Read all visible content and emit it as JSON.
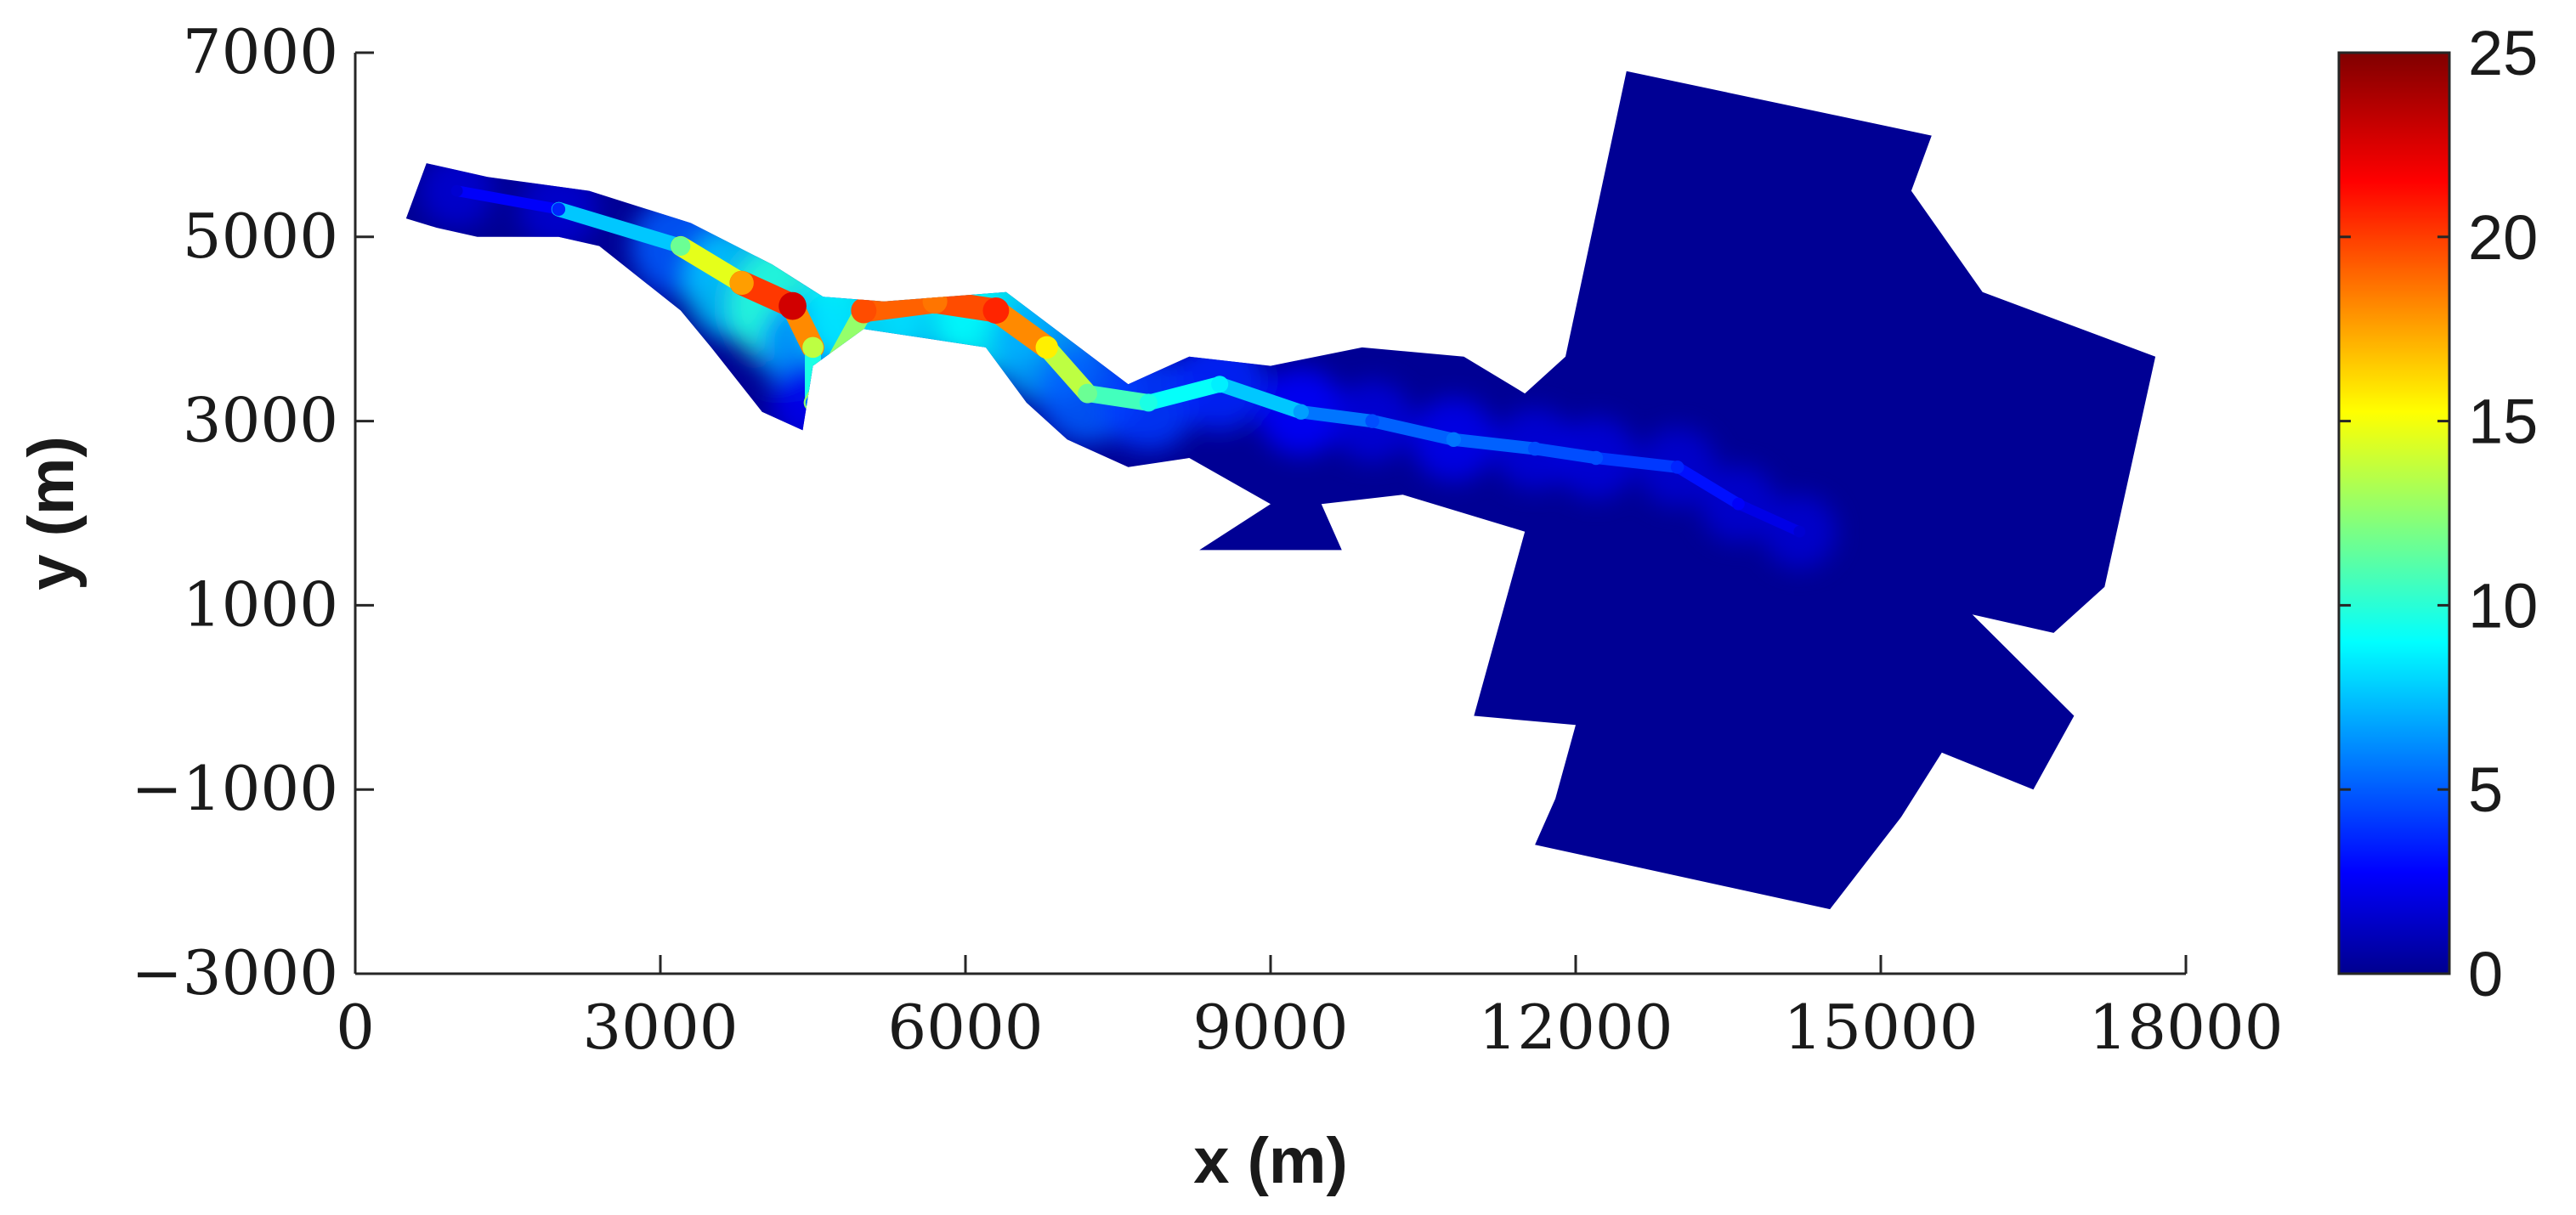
{
  "chart_data": {
    "type": "heatmap",
    "title": "",
    "xlabel": "x (m)",
    "ylabel": "y (m)",
    "xlim": [
      0,
      18000
    ],
    "ylim": [
      -3000,
      7000
    ],
    "xticks": [
      0,
      3000,
      6000,
      9000,
      12000,
      15000,
      18000
    ],
    "yticks": [
      -3000,
      -1000,
      1000,
      3000,
      5000,
      7000
    ],
    "xtick_labels": [
      "0",
      "3000",
      "6000",
      "9000",
      "12000",
      "15000",
      "18000"
    ],
    "ytick_labels": [
      "−3000",
      "−1000",
      "1000",
      "3000",
      "5000",
      "7000"
    ],
    "colormap": "jet",
    "clim": [
      0,
      25
    ],
    "colorbar": {
      "ticks": [
        0,
        5,
        10,
        15,
        20,
        25
      ],
      "tick_labels": [
        "0",
        "5",
        "10",
        "15",
        "20",
        "25"
      ],
      "location": "right"
    },
    "background_value": 0.5,
    "domain_polygons": [
      [
        [
          500,
          5200
        ],
        [
          700,
          5800
        ],
        [
          1300,
          5650
        ],
        [
          2300,
          5500
        ],
        [
          3300,
          5150
        ],
        [
          4100,
          4700
        ],
        [
          4600,
          4350
        ],
        [
          5200,
          4300
        ],
        [
          6400,
          4400
        ],
        [
          7000,
          3900
        ],
        [
          7600,
          3400
        ],
        [
          8200,
          3700
        ],
        [
          9000,
          3600
        ],
        [
          9900,
          3800
        ],
        [
          10900,
          3700
        ],
        [
          11500,
          3300
        ],
        [
          11900,
          3700
        ],
        [
          12500,
          6800
        ],
        [
          15500,
          6100
        ],
        [
          15300,
          5500
        ],
        [
          16000,
          4400
        ],
        [
          17700,
          3700
        ],
        [
          17200,
          1200
        ],
        [
          16700,
          700
        ],
        [
          15900,
          900
        ],
        [
          16900,
          -200
        ],
        [
          16500,
          -1000
        ],
        [
          15600,
          -600
        ],
        [
          15200,
          -1300
        ],
        [
          14500,
          -2300
        ],
        [
          11600,
          -1600
        ],
        [
          11800,
          -1100
        ],
        [
          12000,
          -300
        ],
        [
          11000,
          -200
        ],
        [
          11500,
          1800
        ],
        [
          10300,
          2200
        ],
        [
          9500,
          2100
        ],
        [
          9700,
          1600
        ],
        [
          8300,
          1600
        ],
        [
          9000,
          2100
        ],
        [
          8200,
          2600
        ],
        [
          7600,
          2500
        ],
        [
          7000,
          2800
        ],
        [
          6600,
          3200
        ],
        [
          6200,
          3800
        ],
        [
          5600,
          3900
        ],
        [
          5000,
          4000
        ],
        [
          4500,
          3600
        ],
        [
          4400,
          2900
        ],
        [
          4000,
          3100
        ],
        [
          3500,
          3800
        ],
        [
          3200,
          4200
        ],
        [
          2400,
          4900
        ],
        [
          2000,
          5000
        ],
        [
          1200,
          5000
        ],
        [
          800,
          5100
        ]
      ]
    ],
    "values": [
      {
        "x": 1000,
        "y": 5500,
        "value": 2
      },
      {
        "x": 2000,
        "y": 5300,
        "value": 4
      },
      {
        "x": 3200,
        "y": 4900,
        "value": 12
      },
      {
        "x": 3800,
        "y": 4500,
        "value": 18
      },
      {
        "x": 4300,
        "y": 4250,
        "value": 23
      },
      {
        "x": 4500,
        "y": 3800,
        "value": 14
      },
      {
        "x": 4500,
        "y": 3200,
        "value": 6
      },
      {
        "x": 5000,
        "y": 4200,
        "value": 20
      },
      {
        "x": 5700,
        "y": 4300,
        "value": 19
      },
      {
        "x": 6300,
        "y": 4200,
        "value": 21
      },
      {
        "x": 6800,
        "y": 3800,
        "value": 16
      },
      {
        "x": 7200,
        "y": 3300,
        "value": 12
      },
      {
        "x": 7800,
        "y": 3200,
        "value": 10
      },
      {
        "x": 8500,
        "y": 3400,
        "value": 9
      },
      {
        "x": 9300,
        "y": 3100,
        "value": 7
      },
      {
        "x": 10000,
        "y": 3000,
        "value": 5
      },
      {
        "x": 10800,
        "y": 2800,
        "value": 6
      },
      {
        "x": 11600,
        "y": 2700,
        "value": 5
      },
      {
        "x": 12200,
        "y": 2600,
        "value": 5
      },
      {
        "x": 13000,
        "y": 2500,
        "value": 4
      },
      {
        "x": 13600,
        "y": 2100,
        "value": 3
      },
      {
        "x": 14200,
        "y": 1800,
        "value": 2
      }
    ]
  }
}
